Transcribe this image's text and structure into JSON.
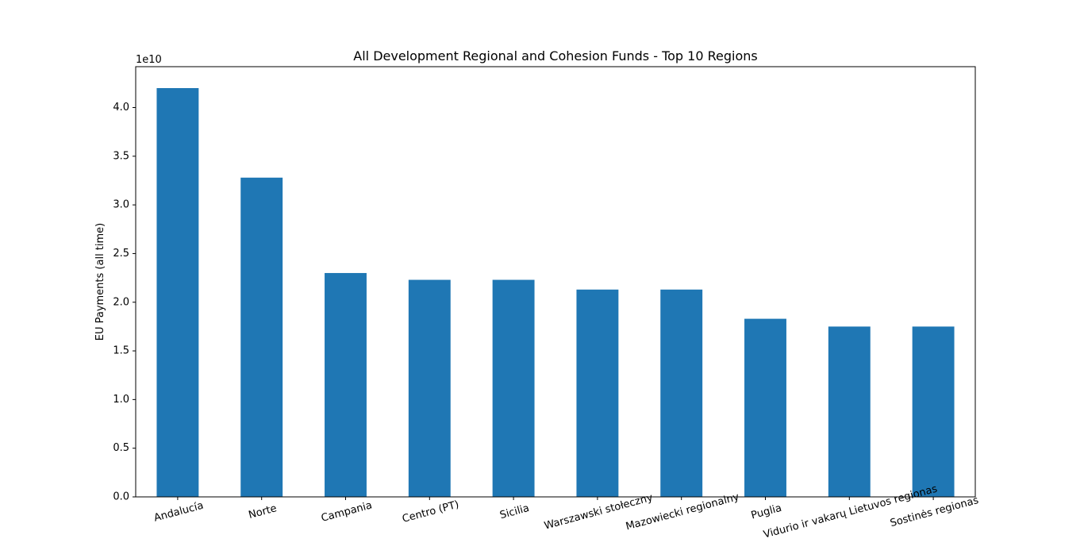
{
  "chart_data": {
    "type": "bar",
    "title": "All Development Regional and Cohesion Funds - Top 10 Regions",
    "xlabel": "",
    "ylabel": "EU Payments (all time)",
    "y_offset_label": "1e10",
    "categories": [
      "Andalucía",
      "Norte",
      "Campania",
      "Centro (PT)",
      "Sicilia",
      "Warszawski stołeczny",
      "Mazowiecki regionalny",
      "Puglia",
      "Vidurio ir vakarų Lietuvos regionas",
      "Sostinės regionas"
    ],
    "values": [
      42000000000,
      32800000000,
      23000000000,
      22300000000,
      22300000000,
      21300000000,
      21300000000,
      18300000000,
      17500000000,
      17500000000
    ],
    "ylim": [
      0,
      44200000000
    ],
    "yticks": [
      0,
      5000000000,
      10000000000,
      15000000000,
      20000000000,
      25000000000,
      30000000000,
      35000000000,
      40000000000
    ],
    "ytick_labels": [
      "0.0",
      "0.5",
      "1.0",
      "1.5",
      "2.0",
      "2.5",
      "3.0",
      "3.5",
      "4.0"
    ],
    "grid": false,
    "color": "#1f77b4"
  }
}
